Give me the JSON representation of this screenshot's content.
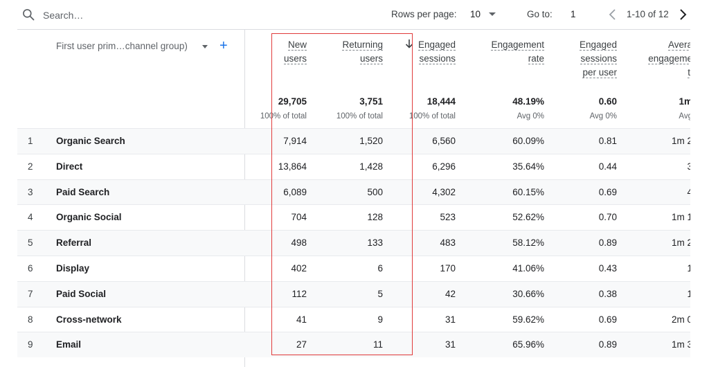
{
  "toolbar": {
    "search_placeholder": "Search…",
    "rows_per_page_label": "Rows per page:",
    "rows_per_page_value": "10",
    "goto_label": "Go to:",
    "goto_value": "1",
    "pagination": "1-10 of 12"
  },
  "dimension": {
    "label": "First user prim…channel group)"
  },
  "columns": [
    {
      "id": "new_users",
      "lines": [
        "New",
        "users"
      ],
      "total": "29,705",
      "sub": "100% of total"
    },
    {
      "id": "returning_users",
      "lines": [
        "Returning",
        "users"
      ],
      "total": "3,751",
      "sub": "100% of total"
    },
    {
      "id": "engaged_sessions",
      "lines": [
        "Engaged",
        "sessions"
      ],
      "total": "18,444",
      "sub": "100% of total"
    },
    {
      "id": "engagement_rate",
      "lines": [
        "Engagement",
        "rate"
      ],
      "total": "48.19%",
      "sub": "Avg 0%"
    },
    {
      "id": "engaged_per_user",
      "lines": [
        "Engaged",
        "sessions",
        "per user"
      ],
      "total": "0.60",
      "sub": "Avg 0%"
    },
    {
      "id": "avg_engagement",
      "lines": [
        "Avera",
        "engageme",
        "ti"
      ],
      "total": "1m",
      "sub": "Avg"
    }
  ],
  "rows": [
    {
      "idx": "1",
      "channel": "Organic Search",
      "values": [
        "7,914",
        "1,520",
        "6,560",
        "60.09%",
        "0.81",
        "1m 2"
      ]
    },
    {
      "idx": "2",
      "channel": "Direct",
      "values": [
        "13,864",
        "1,428",
        "6,296",
        "35.64%",
        "0.44",
        "3"
      ]
    },
    {
      "idx": "3",
      "channel": "Paid Search",
      "values": [
        "6,089",
        "500",
        "4,302",
        "60.15%",
        "0.69",
        "4"
      ]
    },
    {
      "idx": "4",
      "channel": "Organic Social",
      "values": [
        "704",
        "128",
        "523",
        "52.62%",
        "0.70",
        "1m 1"
      ]
    },
    {
      "idx": "5",
      "channel": "Referral",
      "values": [
        "498",
        "133",
        "483",
        "58.12%",
        "0.89",
        "1m 2"
      ]
    },
    {
      "idx": "6",
      "channel": "Display",
      "values": [
        "402",
        "6",
        "170",
        "41.06%",
        "0.43",
        "1"
      ]
    },
    {
      "idx": "7",
      "channel": "Paid Social",
      "values": [
        "112",
        "5",
        "42",
        "30.66%",
        "0.38",
        "1"
      ]
    },
    {
      "idx": "8",
      "channel": "Cross-network",
      "values": [
        "41",
        "9",
        "31",
        "59.62%",
        "0.69",
        "2m 0"
      ]
    },
    {
      "idx": "9",
      "channel": "Email",
      "values": [
        "27",
        "11",
        "31",
        "65.96%",
        "0.89",
        "1m 3"
      ]
    }
  ],
  "colors": {
    "accent": "#1a73e8",
    "highlight_border": "#e03a3a"
  }
}
